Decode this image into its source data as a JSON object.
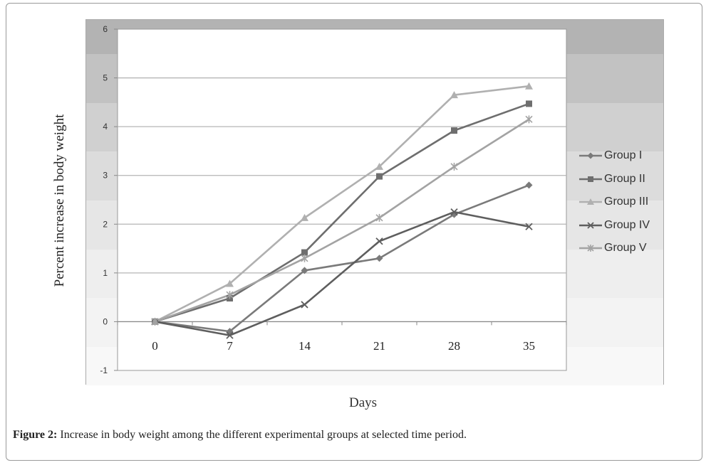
{
  "figure": {
    "caption_label": "Figure 2:",
    "caption_text": " Increase in body weight among the different experimental groups at selected time period."
  },
  "chart_data": {
    "type": "line",
    "xlabel": "Days",
    "ylabel": "Percent increase in body weight",
    "x": [
      0,
      7,
      14,
      21,
      28,
      35
    ],
    "x_tick_labels": [
      "0",
      "7",
      "14",
      "21",
      "28",
      "35"
    ],
    "y_tick_labels": [
      "-1",
      "0",
      "1",
      "2",
      "3",
      "4",
      "5",
      "6"
    ],
    "ylim": [
      -1,
      6
    ],
    "grid": "horizontal",
    "legend_position": "right",
    "series": [
      {
        "name": "Group I",
        "marker": "diamond",
        "color": "#7a7a7a",
        "values": [
          0,
          -0.2,
          1.05,
          1.3,
          2.2,
          2.8
        ]
      },
      {
        "name": "Group II",
        "marker": "square",
        "color": "#6e6e6e",
        "values": [
          0,
          0.48,
          1.42,
          2.98,
          3.92,
          4.47
        ]
      },
      {
        "name": "Group III",
        "marker": "triangle",
        "color": "#b0b0b0",
        "values": [
          0,
          0.78,
          2.13,
          3.18,
          4.65,
          4.83
        ]
      },
      {
        "name": "Group IV",
        "marker": "x",
        "color": "#5e5e5e",
        "values": [
          0,
          -0.28,
          0.35,
          1.65,
          2.25,
          1.95
        ]
      },
      {
        "name": "Group V",
        "marker": "star",
        "color": "#a3a3a3",
        "values": [
          0,
          0.55,
          1.3,
          2.13,
          3.18,
          4.15
        ]
      }
    ],
    "background_colors": [
      "#b3b3b3",
      "#c2c2c2",
      "#d0d0d0",
      "#dcdcdc",
      "#e6e6e6",
      "#eeeeee",
      "#f3f3f3",
      "#f8f8f8"
    ]
  }
}
